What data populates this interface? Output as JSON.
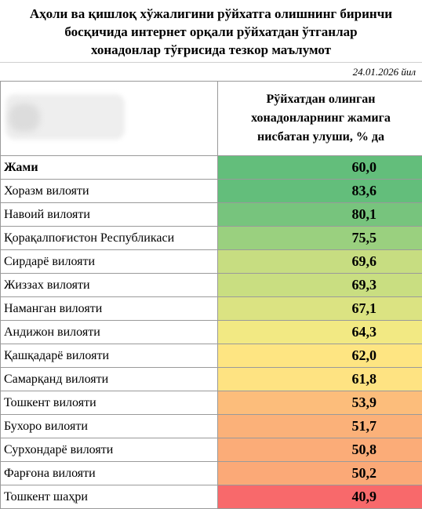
{
  "title": {
    "line1": "Аҳоли ва қишлоқ хўжалигини рўйхатга олишнинг биринчи",
    "line2": "босқичида интернет орқали рўйхатдан  ўтганлар",
    "line3": "хонадонлар тўғрисида тезкор маълумот"
  },
  "date": "24.01.2026 йил",
  "header": {
    "column": [
      "Рўйхатдан олинган",
      "хонадонларнинг жамига",
      "нисбатан улуши, % да"
    ]
  },
  "colors": {
    "green": "#63be7b",
    "yellow": "#ffeb84",
    "red": "#f8696b"
  },
  "rows": [
    {
      "name": "Жами",
      "value": "60,0",
      "bold": true,
      "color": "#63be7b"
    },
    {
      "name": "Хоразм вилояти",
      "value": "83,6",
      "color": "#63be7b"
    },
    {
      "name": "Навоий вилояти",
      "value": "80,1",
      "color": "#77c47d"
    },
    {
      "name": "Қорақалпоғистон Республикаси",
      "value": "75,5",
      "color": "#9ad07f"
    },
    {
      "name": "Сирдарё вилояти",
      "value": "69,6",
      "color": "#c7dd81"
    },
    {
      "name": "Жиззах вилояти",
      "value": "69,3",
      "color": "#c9de81"
    },
    {
      "name": "Наманган вилояти",
      "value": "67,1",
      "color": "#dbe382"
    },
    {
      "name": "Андижон вилояти",
      "value": "64,3",
      "color": "#f2e983"
    },
    {
      "name": "Қашқадарё вилояти",
      "value": "62,0",
      "color": "#fee582"
    },
    {
      "name": "Самарқанд вилояти",
      "value": "61,8",
      "color": "#fee382"
    },
    {
      "name": "Тошкент вилояти",
      "value": "53,9",
      "color": "#fcbd7b"
    },
    {
      "name": "Бухоро вилояти",
      "value": "51,7",
      "color": "#fbb179"
    },
    {
      "name": "Сурхондарё вилояти",
      "value": "50,8",
      "color": "#fbac78"
    },
    {
      "name": "Фарғона вилояти",
      "value": "50,2",
      "color": "#fba977"
    },
    {
      "name": "Тошкент шаҳри",
      "value": "40,9",
      "color": "#f8696b"
    }
  ]
}
